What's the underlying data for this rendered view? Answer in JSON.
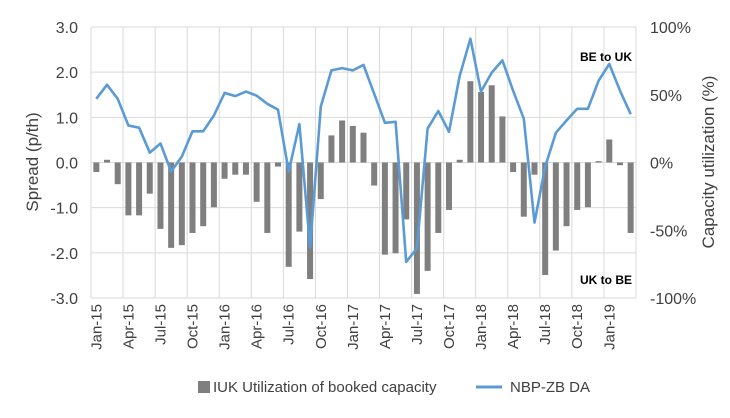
{
  "chart_data": {
    "type": "bar+line",
    "title": "",
    "ylabel_left": "Spread (p/th)",
    "ylabel_right": "Capacity utilization (%)",
    "ylim_left": [
      -3,
      3
    ],
    "ylim_right": [
      -100,
      100
    ],
    "yticks_left": [
      "3.0",
      "2.0",
      "1.0",
      "0.0",
      "-1.0",
      "-2.0",
      "-3.0"
    ],
    "yticks_right": [
      "100%",
      "50%",
      "0%",
      "-50%",
      "-100%"
    ],
    "grid": true,
    "categories": [
      "Jan-15",
      "Feb-15",
      "Mar-15",
      "Apr-15",
      "May-15",
      "Jun-15",
      "Jul-15",
      "Aug-15",
      "Sep-15",
      "Oct-15",
      "Nov-15",
      "Dec-15",
      "Jan-16",
      "Feb-16",
      "Mar-16",
      "Apr-16",
      "May-16",
      "Jun-16",
      "Jul-16",
      "Aug-16",
      "Sep-16",
      "Oct-16",
      "Nov-16",
      "Dec-16",
      "Jan-17",
      "Feb-17",
      "Mar-17",
      "Apr-17",
      "May-17",
      "Jun-17",
      "Jul-17",
      "Aug-17",
      "Sep-17",
      "Oct-17",
      "Nov-17",
      "Dec-17",
      "Jan-18",
      "Feb-18",
      "Mar-18",
      "Apr-18",
      "May-18",
      "Jun-18",
      "Jul-18",
      "Aug-18",
      "Sep-18",
      "Oct-18",
      "Nov-18",
      "Dec-18",
      "Jan-19",
      "Feb-19",
      "Mar-19"
    ],
    "xtick_labels": [
      "Jan-15",
      "Apr-15",
      "Jul-15",
      "Oct-15",
      "Jan-16",
      "Apr-16",
      "Jul-16",
      "Oct-16",
      "Jan-17",
      "Apr-17",
      "Jul-17",
      "Oct-17",
      "Jan-18",
      "Apr-18",
      "Jul-18",
      "Oct-18",
      "Jan-19"
    ],
    "series": [
      {
        "name": "IUK Utilization of booked capacity",
        "type": "bar",
        "axis": "right",
        "color": "#7f7f7f",
        "values": [
          -7,
          2,
          -16,
          -39,
          -39,
          -23,
          -49,
          -63,
          -61,
          -52,
          -47,
          -33,
          -12,
          -9,
          -9,
          -29,
          -52,
          -3,
          -77,
          -51,
          -86,
          -27,
          20,
          31,
          27,
          22,
          -17,
          -68,
          -67,
          -42,
          -97,
          -80,
          -52,
          -35,
          2,
          60,
          52,
          57,
          34,
          -7,
          -40,
          -9,
          -83,
          -65,
          -47,
          -35,
          -33,
          1,
          17,
          -2,
          -52
        ]
      },
      {
        "name": "NBP-ZB DA",
        "type": "line",
        "axis": "left",
        "color": "#5b9bd5",
        "values": [
          1.41,
          1.72,
          1.41,
          0.82,
          0.77,
          0.22,
          0.42,
          -0.2,
          0.13,
          0.69,
          0.69,
          1.04,
          1.54,
          1.47,
          1.57,
          1.48,
          1.3,
          1.17,
          -0.2,
          0.85,
          -1.88,
          1.24,
          2.04,
          2.09,
          2.04,
          2.16,
          1.52,
          0.88,
          0.9,
          -2.2,
          -1.9,
          0.75,
          1.14,
          0.68,
          1.92,
          2.74,
          1.57,
          1.99,
          2.26,
          1.59,
          0.97,
          -1.33,
          -0.09,
          0.66,
          0.93,
          1.19,
          1.19,
          1.81,
          2.18,
          1.59,
          1.07
        ]
      }
    ],
    "annotations": [
      "BE to UK",
      "UK to BE"
    ],
    "legend_position": "bottom"
  }
}
